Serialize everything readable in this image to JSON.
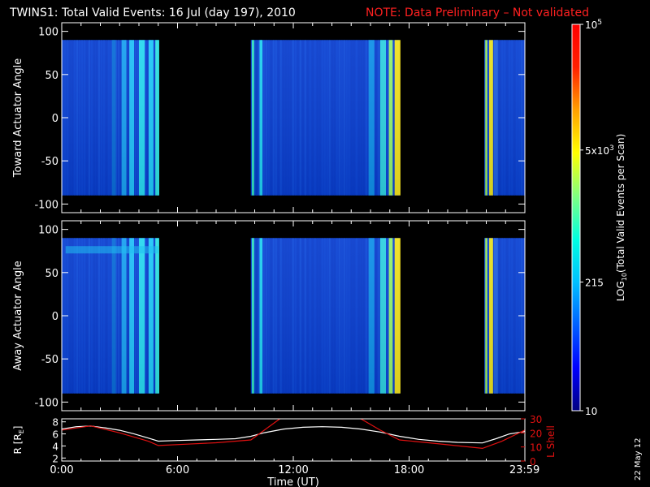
{
  "header": {
    "title": "TWINS1: Total Valid Events: 16 Jul (day 197), 2010",
    "note": "NOTE: Data Preliminary – Not validated"
  },
  "footer": {
    "date_stamp": "22 May 12"
  },
  "colors": {
    "background": "#000000",
    "axis": "#ffffff",
    "note": "#ff2020",
    "lshell": "#e01010",
    "radius_line": "#ffffff"
  },
  "chart_data": [
    {
      "type": "heatmap",
      "name": "toward-panel",
      "ylabel": "Toward Actuator Angle",
      "ylim": [
        -110,
        110
      ],
      "yticks": [
        100,
        50,
        0,
        -50,
        -100
      ],
      "x_range_hours": [
        0,
        24
      ],
      "data_y_range": [
        -90,
        90
      ],
      "blocks": [
        {
          "start_h": 0.0,
          "end_h": 5.0,
          "stripes": [
            {
              "h": 2.6,
              "w": 0.2,
              "c": "#0a6cd8"
            },
            {
              "h": 3.1,
              "w": 0.25,
              "c": "#1aa0f0"
            },
            {
              "h": 3.5,
              "w": 0.25,
              "c": "#22c0f8"
            },
            {
              "h": 4.0,
              "w": 0.3,
              "c": "#28d8f0"
            },
            {
              "h": 4.5,
              "w": 0.25,
              "c": "#20c8f8"
            },
            {
              "h": 4.85,
              "w": 0.2,
              "c": "#30e0e0"
            }
          ]
        },
        {
          "start_h": 9.8,
          "end_h": 17.5,
          "stripes": [
            {
              "h": 9.85,
              "w": 0.12,
              "c": "#30e0c0"
            },
            {
              "h": 10.05,
              "w": 0.1,
              "c": "#0040c0"
            },
            {
              "h": 10.25,
              "w": 0.15,
              "c": "#20d0f0"
            },
            {
              "h": 15.9,
              "w": 0.3,
              "c": "#1090e8"
            },
            {
              "h": 16.5,
              "w": 0.3,
              "c": "#30d0e0"
            },
            {
              "h": 16.95,
              "w": 0.2,
              "c": "#90f070"
            },
            {
              "h": 17.25,
              "w": 0.3,
              "c": "#f0e020"
            }
          ]
        },
        {
          "start_h": 21.9,
          "end_h": 24.0,
          "stripes": [
            {
              "h": 21.95,
              "w": 0.1,
              "c": "#a0f050"
            },
            {
              "h": 22.15,
              "w": 0.2,
              "c": "#e8e020"
            },
            {
              "h": 22.4,
              "w": 0.2,
              "c": "#2060e0"
            }
          ]
        }
      ]
    },
    {
      "type": "heatmap",
      "name": "away-panel",
      "ylabel": "Away Actuator Angle",
      "ylim": [
        -110,
        110
      ],
      "yticks": [
        100,
        50,
        0,
        -50,
        -100
      ],
      "x_range_hours": [
        0,
        24
      ],
      "data_y_range": [
        -90,
        90
      ],
      "blocks": [
        {
          "start_h": 0.0,
          "end_h": 5.0,
          "stripes": [
            {
              "h": 2.6,
              "w": 0.2,
              "c": "#0a6cd8"
            },
            {
              "h": 3.1,
              "w": 0.25,
              "c": "#1aa0f0"
            },
            {
              "h": 3.5,
              "w": 0.25,
              "c": "#22c0f8"
            },
            {
              "h": 4.0,
              "w": 0.3,
              "c": "#28d8f0"
            },
            {
              "h": 4.5,
              "w": 0.25,
              "c": "#20c8f8"
            },
            {
              "h": 4.85,
              "w": 0.2,
              "c": "#30e0e0"
            }
          ]
        },
        {
          "start_h": 9.8,
          "end_h": 17.5,
          "stripes": [
            {
              "h": 9.85,
              "w": 0.12,
              "c": "#30e0c0"
            },
            {
              "h": 10.05,
              "w": 0.1,
              "c": "#0040c0"
            },
            {
              "h": 10.25,
              "w": 0.15,
              "c": "#20d0f0"
            },
            {
              "h": 15.9,
              "w": 0.3,
              "c": "#1090e8"
            },
            {
              "h": 16.5,
              "w": 0.3,
              "c": "#30d0e0"
            },
            {
              "h": 16.95,
              "w": 0.2,
              "c": "#90f070"
            },
            {
              "h": 17.25,
              "w": 0.3,
              "c": "#f0e020"
            }
          ]
        },
        {
          "start_h": 21.9,
          "end_h": 24.0,
          "stripes": [
            {
              "h": 21.95,
              "w": 0.1,
              "c": "#a0f050"
            },
            {
              "h": 22.15,
              "w": 0.2,
              "c": "#e8e020"
            },
            {
              "h": 22.4,
              "w": 0.2,
              "c": "#2060e0"
            }
          ]
        }
      ],
      "band": {
        "y": 75,
        "start_h": 0.2,
        "end_h": 5.0,
        "c": "#20c0f0"
      }
    },
    {
      "type": "line",
      "name": "orbit-panel",
      "xlabel": "Time (UT)",
      "ylabel_left": "R [R",
      "ylabel_left_sub": "E",
      "ylabel_left_end": "]",
      "ylabel_right": "L Shell",
      "ylim_left": [
        1.5,
        8.5
      ],
      "yticks_left": [
        8,
        6,
        4,
        2
      ],
      "ylim_right": [
        0,
        30
      ],
      "yticks_right": [
        30,
        20,
        10,
        0
      ],
      "xticks": [
        {
          "h": 0.0,
          "label": "0:00"
        },
        {
          "h": 6.0,
          "label": "6:00"
        },
        {
          "h": 12.0,
          "label": "12:00"
        },
        {
          "h": 18.0,
          "label": "18:00"
        },
        {
          "h": 23.983,
          "label": "23:59"
        }
      ],
      "series": [
        {
          "axis": "left",
          "x": [
            0,
            0.75,
            1.5,
            2.25,
            3.0,
            3.75,
            4.5,
            5.0,
            6.0,
            7.0,
            8.0,
            9.0,
            9.8,
            10.5,
            11.5,
            12.5,
            13.5,
            14.5,
            15.5,
            16.5,
            17.5,
            18.5,
            19.5,
            20.5,
            21.8,
            22.5,
            23.2,
            24.0
          ],
          "y": [
            6.8,
            7.2,
            7.3,
            7.0,
            6.6,
            6.0,
            5.3,
            4.8,
            4.9,
            5.0,
            5.1,
            5.2,
            5.6,
            6.2,
            6.8,
            7.1,
            7.2,
            7.1,
            6.8,
            6.3,
            5.6,
            5.1,
            4.8,
            4.6,
            4.5,
            5.2,
            6.0,
            6.4
          ]
        },
        {
          "axis": "right",
          "x": [
            0,
            1.5,
            3.0,
            4.5,
            5.0,
            6.5,
            8.0,
            9.8,
            10.5,
            11.3,
            11.7,
            14.9,
            15.5,
            16.5,
            17.5,
            19.0,
            21.8,
            22.8,
            24.0
          ],
          "y": [
            22,
            25,
            20,
            14,
            11,
            12,
            13,
            15,
            22,
            30,
            31,
            31,
            30,
            22,
            15,
            13,
            9,
            14,
            22
          ]
        }
      ]
    },
    {
      "type": "colorbar",
      "name": "colorbar",
      "label_prefix": "LOG",
      "label_sub": "10",
      "label_suffix": "(Total Valid Events per Scan)",
      "scale": "log",
      "range": [
        10,
        100000
      ],
      "ticks": [
        {
          "value": 100000,
          "base": "10",
          "exp": "5"
        },
        {
          "value": 5000,
          "base": "5x10",
          "exp": "3"
        },
        {
          "value": 215,
          "base": "215",
          "exp": ""
        },
        {
          "value": 10,
          "base": "10",
          "exp": ""
        }
      ],
      "stops": [
        "#000080",
        "#0000ff",
        "#0060ff",
        "#00c0ff",
        "#00ffe0",
        "#80ff80",
        "#ffff00",
        "#ffa000",
        "#ff2000",
        "#ff0000"
      ]
    }
  ]
}
